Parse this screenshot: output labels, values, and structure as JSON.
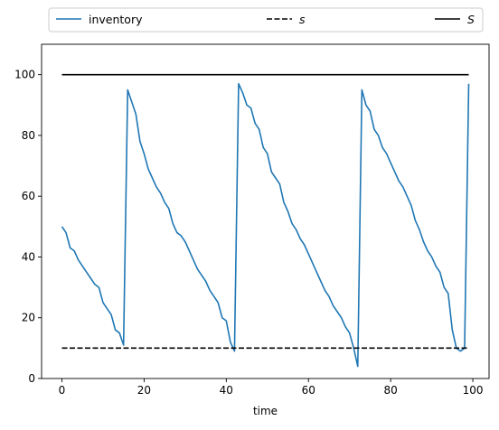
{
  "chart_data": {
    "type": "line",
    "title": "",
    "xlabel": "time",
    "ylabel": "",
    "xlim": [
      -4.95,
      103.95
    ],
    "ylim": [
      0,
      110
    ],
    "xticks": [
      0,
      20,
      40,
      60,
      80,
      100
    ],
    "yticks": [
      0,
      20,
      40,
      60,
      80,
      100
    ],
    "grid": false,
    "legend": {
      "placement": "top",
      "columns": 3
    },
    "series": [
      {
        "name": "inventory",
        "style": "solid",
        "color": "#1f77b4",
        "x": [
          0,
          1,
          2,
          3,
          4,
          5,
          6,
          7,
          8,
          9,
          10,
          11,
          12,
          13,
          14,
          15,
          16,
          17,
          18,
          19,
          20,
          21,
          22,
          23,
          24,
          25,
          26,
          27,
          28,
          29,
          30,
          31,
          32,
          33,
          34,
          35,
          36,
          37,
          38,
          39,
          40,
          41,
          42,
          43,
          44,
          45,
          46,
          47,
          48,
          49,
          50,
          51,
          52,
          53,
          54,
          55,
          56,
          57,
          58,
          59,
          60,
          61,
          62,
          63,
          64,
          65,
          66,
          67,
          68,
          69,
          70,
          71,
          72,
          73,
          74,
          75,
          76,
          77,
          78,
          79,
          80,
          81,
          82,
          83,
          84,
          85,
          86,
          87,
          88,
          89,
          90,
          91,
          92,
          93,
          94,
          95,
          96,
          97,
          98,
          99
        ],
        "y": [
          50,
          48,
          43,
          42,
          39,
          37,
          35,
          33,
          31,
          30,
          25,
          23,
          21,
          16,
          15,
          11,
          95,
          91,
          87,
          78,
          74,
          69,
          66,
          63,
          61,
          58,
          56,
          51,
          48,
          47,
          45,
          42,
          39,
          36,
          34,
          32,
          29,
          27,
          25,
          20,
          19,
          12,
          9,
          97,
          94,
          90,
          89,
          84,
          82,
          76,
          74,
          68,
          66,
          64,
          58,
          55,
          51,
          49,
          46,
          44,
          41,
          38,
          35,
          32,
          29,
          27,
          24,
          22,
          20,
          17,
          15,
          10,
          4,
          95,
          90,
          88,
          82,
          80,
          76,
          74,
          71,
          68,
          65,
          63,
          60,
          57,
          52,
          49,
          45,
          42,
          40,
          37,
          35,
          30,
          28,
          16,
          10,
          9,
          10,
          97
        ]
      },
      {
        "name": "s",
        "style": "dashed",
        "color": "#000000",
        "x": [
          0,
          99
        ],
        "y": [
          10,
          10
        ]
      },
      {
        "name": "S",
        "style": "solid",
        "color": "#000000",
        "x": [
          0,
          99
        ],
        "y": [
          100,
          100
        ]
      }
    ]
  }
}
